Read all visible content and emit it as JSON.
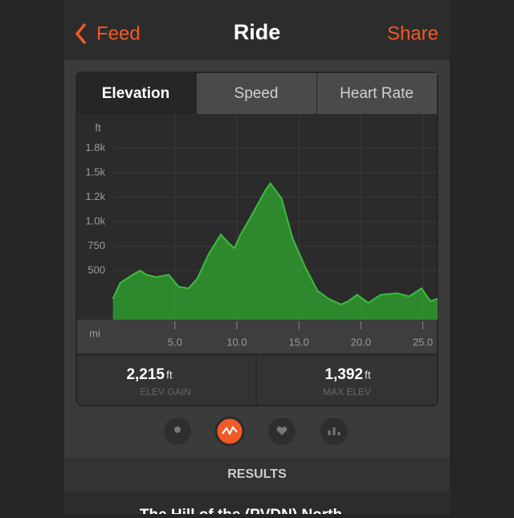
{
  "nav": {
    "back": "Feed",
    "title": "Ride",
    "action": "Share"
  },
  "tabs": [
    "Elevation",
    "Speed",
    "Heart Rate"
  ],
  "chart_data": {
    "type": "area",
    "ylabel": "ft",
    "xlabel": "mi",
    "color": "#2f9a2f",
    "grid": true,
    "x": [
      0,
      0.6,
      1.6,
      2.2,
      2.7,
      3.5,
      4.5,
      5.3,
      6.1,
      6.8,
      7.7,
      8.7,
      9.3,
      9.8,
      10.3,
      11.3,
      12.3,
      12.7,
      13.6,
      14.5,
      15.5,
      16.5,
      17.4,
      18.4,
      19.0,
      19.7,
      20.6,
      21.6,
      22.9,
      23.9,
      24.9,
      25.6,
      26.2
    ],
    "values": [
      213,
      377,
      459,
      500,
      459,
      434,
      459,
      336,
      320,
      418,
      664,
      869,
      787,
      730,
      869,
      1090,
      1320,
      1392,
      1238,
      828,
      541,
      295,
      213,
      156,
      189,
      254,
      172,
      254,
      270,
      238,
      320,
      189,
      213
    ],
    "xlim": [
      0,
      26.2
    ],
    "ylim": [
      0,
      2100
    ],
    "xticks": [
      {
        "value": 5,
        "label": "5.0"
      },
      {
        "value": 10,
        "label": "10.0"
      },
      {
        "value": 15,
        "label": "15.0"
      },
      {
        "value": 20,
        "label": "20.0"
      },
      {
        "value": 25,
        "label": "25.0"
      }
    ],
    "yticks": [
      500,
      750,
      {
        "value": 1000,
        "label": "1.0k"
      },
      {
        "value": 1250,
        "label": "1.2k"
      },
      {
        "value": 1500,
        "label": "1.5k"
      },
      {
        "value": 1750,
        "label": "1.8k"
      }
    ]
  },
  "stats": [
    {
      "value": "2,215",
      "unit": "ft",
      "label": "ELEV GAIN"
    },
    {
      "value": "1,392",
      "unit": "ft",
      "label": "MAX ELEV"
    }
  ],
  "section": "RESULTS",
  "result": "The Hill of the (PVDN) North"
}
